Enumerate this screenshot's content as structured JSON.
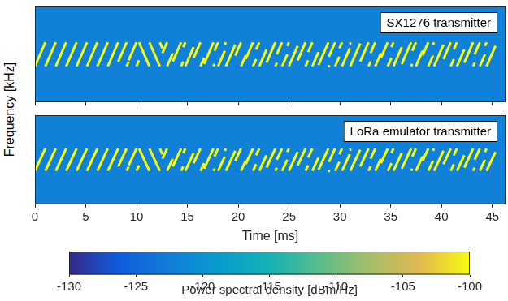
{
  "ylabel": "Frequency [kHz]",
  "chart_data": [
    {
      "type": "spectrogram",
      "annotation": "SX1276 transmitter",
      "xlim": [
        0,
        46.3
      ],
      "xticks": [
        0,
        5,
        10,
        15,
        20,
        25,
        30,
        35,
        40,
        45
      ],
      "ylim": [
        -250,
        250
      ],
      "tick_labels": false,
      "grid": false,
      "noise_level": -122,
      "chirp_level": -100,
      "segments": [
        [
          0,
          -62.5,
          1.02,
          62.5
        ],
        [
          1.02,
          -62.5,
          2.05,
          62.5
        ],
        [
          2.05,
          -62.5,
          3.07,
          62.5
        ],
        [
          3.07,
          -62.5,
          4.1,
          62.5
        ],
        [
          4.1,
          -62.5,
          5.12,
          62.5
        ],
        [
          5.12,
          -62.5,
          6.14,
          62.5
        ],
        [
          6.14,
          -62.5,
          7.17,
          62.5
        ],
        [
          7.17,
          -62.5,
          8.19,
          62.5
        ],
        [
          8.19,
          -38.8,
          9.02,
          62.5
        ],
        [
          9.02,
          -62.5,
          9.22,
          -38.8
        ],
        [
          9.22,
          -31.3,
          9.99,
          62.5
        ],
        [
          9.99,
          -62.5,
          10.24,
          -31.3
        ],
        [
          10.24,
          62.5,
          11.26,
          -62.5
        ],
        [
          11.26,
          62.5,
          12.29,
          -62.5
        ],
        [
          12.29,
          62.5,
          12.54,
          31.3
        ],
        [
          12.54,
          6.25,
          13.0,
          62.5
        ],
        [
          13.0,
          -62.5,
          13.56,
          6.25
        ],
        [
          13.56,
          -37.5,
          14.38,
          62.5
        ],
        [
          14.38,
          -62.5,
          14.59,
          -37.5
        ],
        [
          14.59,
          37.5,
          14.79,
          62.5
        ],
        [
          14.79,
          -62.5,
          15.61,
          37.5
        ],
        [
          15.61,
          -18.75,
          16.28,
          62.5
        ],
        [
          16.28,
          -62.5,
          16.64,
          -18.75
        ],
        [
          16.64,
          -50,
          17.56,
          62.5
        ],
        [
          17.56,
          -62.5,
          17.66,
          -50
        ],
        [
          17.66,
          18.75,
          18.02,
          62.5
        ],
        [
          18.02,
          -62.5,
          18.68,
          18.75
        ],
        [
          18.68,
          50,
          18.78,
          62.5
        ],
        [
          18.78,
          -62.5,
          19.71,
          50
        ],
        [
          19.71,
          -6.25,
          20.27,
          62.5
        ],
        [
          20.27,
          -62.5,
          20.73,
          -6.25
        ],
        [
          20.73,
          -25,
          21.45,
          62.5
        ],
        [
          21.45,
          -62.5,
          21.76,
          -25
        ],
        [
          21.76,
          25,
          22.07,
          62.5
        ],
        [
          22.07,
          -62.5,
          22.78,
          25
        ],
        [
          22.78,
          -43.75,
          23.65,
          62.5
        ],
        [
          23.65,
          -62.5,
          23.8,
          -43.75
        ],
        [
          23.8,
          0,
          24.31,
          62.5
        ],
        [
          24.31,
          -62.5,
          24.83,
          0
        ],
        [
          24.83,
          43.75,
          24.98,
          62.5
        ],
        [
          24.98,
          -62.5,
          25.85,
          43.75
        ],
        [
          25.85,
          -31.25,
          26.62,
          62.5
        ],
        [
          26.62,
          -62.5,
          26.88,
          -31.25
        ],
        [
          26.88,
          12.5,
          27.29,
          62.5
        ],
        [
          27.29,
          -62.5,
          27.9,
          12.5
        ],
        [
          27.9,
          -56.25,
          28.87,
          62.5
        ],
        [
          28.87,
          -62.5,
          28.92,
          -56.25
        ],
        [
          28.92,
          -12.5,
          29.53,
          62.5
        ],
        [
          29.53,
          -62.5,
          29.95,
          -12.5
        ],
        [
          29.95,
          31.25,
          30.21,
          62.5
        ],
        [
          30.21,
          -62.5,
          30.97,
          31.25
        ],
        [
          30.97,
          56.25,
          31.02,
          62.5
        ],
        [
          31.02,
          -62.5,
          32.0,
          56.25
        ],
        [
          32.0,
          -37.5,
          32.82,
          62.5
        ],
        [
          32.82,
          -62.5,
          33.02,
          -37.5
        ],
        [
          33.02,
          6.25,
          33.48,
          62.5
        ],
        [
          33.48,
          -62.5,
          34.04,
          6.25
        ],
        [
          34.04,
          -18.75,
          34.71,
          62.5
        ],
        [
          34.71,
          -62.5,
          35.07,
          -18.75
        ],
        [
          35.07,
          37.5,
          35.27,
          62.5
        ],
        [
          35.27,
          -62.5,
          36.09,
          37.5
        ],
        [
          36.09,
          -50,
          37.01,
          62.5
        ],
        [
          37.01,
          -62.5,
          37.12,
          -50
        ],
        [
          37.12,
          18.75,
          37.48,
          62.5
        ],
        [
          37.48,
          -62.5,
          38.14,
          18.75
        ],
        [
          38.14,
          -6.25,
          38.7,
          62.5
        ],
        [
          38.7,
          -62.5,
          39.16,
          -6.25
        ],
        [
          39.16,
          50,
          39.26,
          62.5
        ],
        [
          39.26,
          -62.5,
          40.19,
          50
        ],
        [
          40.19,
          -25,
          40.91,
          62.5
        ],
        [
          40.91,
          -62.5,
          41.21,
          -25
        ],
        [
          41.21,
          25,
          41.52,
          62.5
        ],
        [
          41.52,
          -62.5,
          42.24,
          25
        ],
        [
          42.24,
          -43.75,
          43.11,
          62.5
        ],
        [
          43.11,
          -62.5,
          43.26,
          -43.75
        ],
        [
          43.26,
          0,
          43.77,
          62.5
        ],
        [
          43.77,
          -62.5,
          44.28,
          0
        ],
        [
          44.28,
          43.75,
          44.43,
          62.5
        ],
        [
          44.43,
          -62.5,
          45.31,
          43.75
        ]
      ]
    },
    {
      "type": "spectrogram",
      "annotation": "LoRa emulator transmitter",
      "xlabel": "Time [ms]",
      "xlim": [
        0,
        46.3
      ],
      "xticks": [
        0,
        5,
        10,
        15,
        20,
        25,
        30,
        35,
        40,
        45
      ],
      "ylim": [
        -250,
        250
      ],
      "tick_labels": "x",
      "grid": false,
      "noise_level": -122,
      "chirp_level": -100,
      "segments": [
        [
          0,
          -62.5,
          1.02,
          62.5
        ],
        [
          1.02,
          -62.5,
          2.05,
          62.5
        ],
        [
          2.05,
          -62.5,
          3.07,
          62.5
        ],
        [
          3.07,
          -62.5,
          4.1,
          62.5
        ],
        [
          4.1,
          -62.5,
          5.12,
          62.5
        ],
        [
          5.12,
          -62.5,
          6.14,
          62.5
        ],
        [
          6.14,
          -62.5,
          7.17,
          62.5
        ],
        [
          7.17,
          -62.5,
          8.19,
          62.5
        ],
        [
          8.19,
          -38.8,
          9.02,
          62.5
        ],
        [
          9.02,
          -62.5,
          9.22,
          -38.8
        ],
        [
          9.22,
          -31.3,
          9.99,
          62.5
        ],
        [
          9.99,
          -62.5,
          10.24,
          -31.3
        ],
        [
          10.24,
          62.5,
          11.26,
          -62.5
        ],
        [
          11.26,
          62.5,
          12.29,
          -62.5
        ],
        [
          12.29,
          62.5,
          12.54,
          31.3
        ],
        [
          12.54,
          6.25,
          13.0,
          62.5
        ],
        [
          13.0,
          -62.5,
          13.56,
          6.25
        ],
        [
          13.56,
          -37.5,
          14.38,
          62.5
        ],
        [
          14.38,
          -62.5,
          14.59,
          -37.5
        ],
        [
          14.59,
          37.5,
          14.79,
          62.5
        ],
        [
          14.79,
          -62.5,
          15.61,
          37.5
        ],
        [
          15.61,
          -18.75,
          16.28,
          62.5
        ],
        [
          16.28,
          -62.5,
          16.64,
          -18.75
        ],
        [
          16.64,
          -50,
          17.56,
          62.5
        ],
        [
          17.56,
          -62.5,
          17.66,
          -50
        ],
        [
          17.66,
          18.75,
          18.02,
          62.5
        ],
        [
          18.02,
          -62.5,
          18.68,
          18.75
        ],
        [
          18.68,
          50,
          18.78,
          62.5
        ],
        [
          18.78,
          -62.5,
          19.71,
          50
        ],
        [
          19.71,
          -6.25,
          20.27,
          62.5
        ],
        [
          20.27,
          -62.5,
          20.73,
          -6.25
        ],
        [
          20.73,
          -25,
          21.45,
          62.5
        ],
        [
          21.45,
          -62.5,
          21.76,
          -25
        ],
        [
          21.76,
          25,
          22.07,
          62.5
        ],
        [
          22.07,
          -62.5,
          22.78,
          25
        ],
        [
          22.78,
          -43.75,
          23.65,
          62.5
        ],
        [
          23.65,
          -62.5,
          23.8,
          -43.75
        ],
        [
          23.8,
          0,
          24.31,
          62.5
        ],
        [
          24.31,
          -62.5,
          24.83,
          0
        ],
        [
          24.83,
          43.75,
          24.98,
          62.5
        ],
        [
          24.98,
          -62.5,
          25.85,
          43.75
        ],
        [
          25.85,
          -31.25,
          26.62,
          62.5
        ],
        [
          26.62,
          -62.5,
          26.88,
          -31.25
        ],
        [
          26.88,
          12.5,
          27.29,
          62.5
        ],
        [
          27.29,
          -62.5,
          27.9,
          12.5
        ],
        [
          27.9,
          -56.25,
          28.87,
          62.5
        ],
        [
          28.87,
          -62.5,
          28.92,
          -56.25
        ],
        [
          28.92,
          -12.5,
          29.53,
          62.5
        ],
        [
          29.53,
          -62.5,
          29.95,
          -12.5
        ],
        [
          29.95,
          31.25,
          30.21,
          62.5
        ],
        [
          30.21,
          -62.5,
          30.97,
          31.25
        ],
        [
          30.97,
          56.25,
          31.02,
          62.5
        ],
        [
          31.02,
          -62.5,
          32.0,
          56.25
        ],
        [
          32.0,
          -37.5,
          32.82,
          62.5
        ],
        [
          32.82,
          -62.5,
          33.02,
          -37.5
        ],
        [
          33.02,
          6.25,
          33.48,
          62.5
        ],
        [
          33.48,
          -62.5,
          34.04,
          6.25
        ],
        [
          34.04,
          -18.75,
          34.71,
          62.5
        ],
        [
          34.71,
          -62.5,
          35.07,
          -18.75
        ],
        [
          35.07,
          37.5,
          35.27,
          62.5
        ],
        [
          35.27,
          -62.5,
          36.09,
          37.5
        ],
        [
          36.09,
          -50,
          37.01,
          62.5
        ],
        [
          37.01,
          -62.5,
          37.12,
          -50
        ],
        [
          37.12,
          18.75,
          37.48,
          62.5
        ],
        [
          37.48,
          -62.5,
          38.14,
          18.75
        ],
        [
          38.14,
          -6.25,
          38.7,
          62.5
        ],
        [
          38.7,
          -62.5,
          39.16,
          -6.25
        ],
        [
          39.16,
          50,
          39.26,
          62.5
        ],
        [
          39.26,
          -62.5,
          40.19,
          50
        ],
        [
          40.19,
          -25,
          40.91,
          62.5
        ],
        [
          40.91,
          -62.5,
          41.21,
          -25
        ],
        [
          41.21,
          25,
          41.52,
          62.5
        ],
        [
          41.52,
          -62.5,
          42.24,
          25
        ],
        [
          42.24,
          -43.75,
          43.11,
          62.5
        ],
        [
          43.11,
          -62.5,
          43.26,
          -43.75
        ],
        [
          43.26,
          0,
          43.77,
          62.5
        ],
        [
          43.77,
          -62.5,
          44.28,
          0
        ],
        [
          44.28,
          43.75,
          44.43,
          62.5
        ],
        [
          44.43,
          -62.5,
          45.31,
          43.75
        ]
      ]
    }
  ],
  "colorbar": {
    "label": "Power spectral density [dBm/Hz]",
    "range": [
      -130,
      -100
    ],
    "ticks": [
      -130,
      -125,
      -120,
      -115,
      -110,
      -105,
      -100
    ]
  }
}
